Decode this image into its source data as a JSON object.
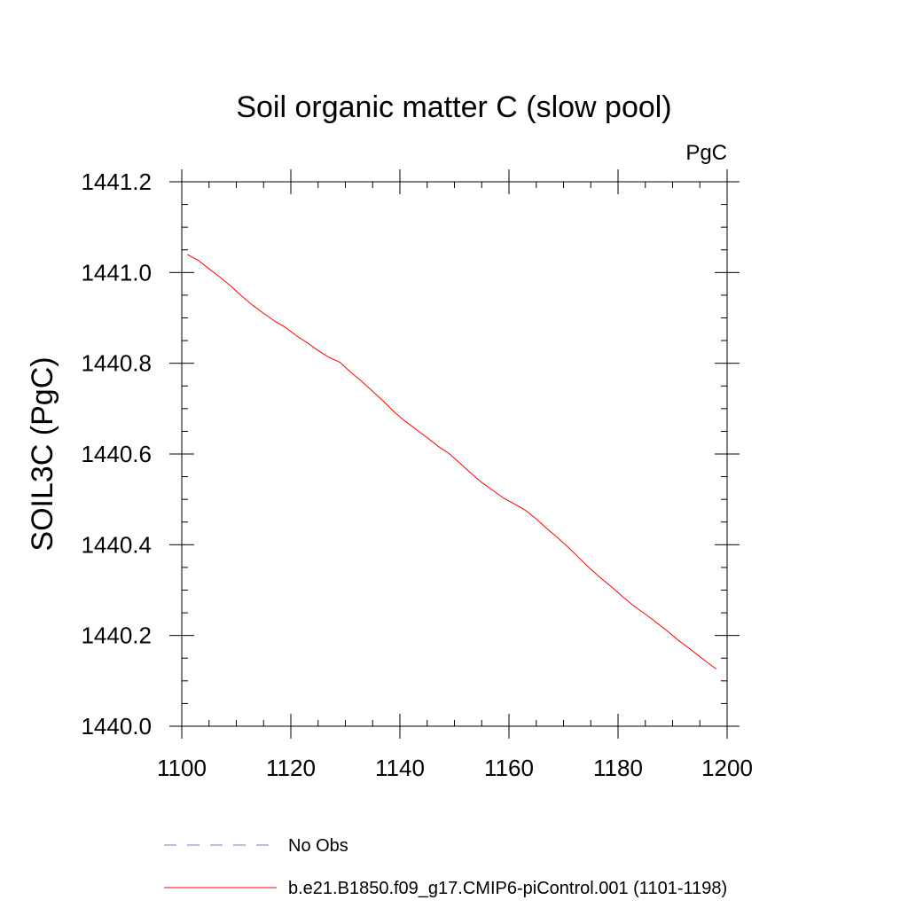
{
  "chart_data": {
    "type": "line",
    "title": "Soil organic matter C (slow pool)",
    "units": "PgC",
    "ylabel": "SOIL3C  (PgC)",
    "xlabel": "",
    "xlim": [
      1100,
      1200
    ],
    "ylim": [
      1440.0,
      1441.2
    ],
    "xticks": [
      "1100",
      "1120",
      "1140",
      "1160",
      "1180",
      "1200"
    ],
    "xtick_values": [
      1100,
      1120,
      1140,
      1160,
      1180,
      1200
    ],
    "yticks": [
      "1440.0",
      "1440.2",
      "1440.4",
      "1440.6",
      "1440.8",
      "1441.0",
      "1441.2"
    ],
    "ytick_values": [
      1440.0,
      1440.2,
      1440.4,
      1440.6,
      1440.8,
      1441.0,
      1441.2
    ],
    "grid": false,
    "legend_position": "bottom",
    "series": [
      {
        "name": "No Obs",
        "color": "#7b7bd6",
        "dash": true,
        "x": [],
        "y": []
      },
      {
        "name": "b.e21.B1850.f09_g17.CMIP6-piControl.001 (1101-1198)",
        "color": "#ff0000",
        "dash": false,
        "x": [
          1101,
          1103,
          1105,
          1107,
          1109,
          1111,
          1113,
          1115,
          1117,
          1119,
          1121,
          1123,
          1125,
          1127,
          1129,
          1131,
          1133,
          1135,
          1137,
          1139,
          1141,
          1143,
          1145,
          1147,
          1149,
          1151,
          1153,
          1155,
          1157,
          1159,
          1161,
          1163,
          1165,
          1167,
          1169,
          1171,
          1173,
          1175,
          1177,
          1179,
          1181,
          1183,
          1185,
          1187,
          1189,
          1191,
          1193,
          1195,
          1197,
          1198
        ],
        "y": [
          1441.04,
          1441.027,
          1441.008,
          1440.99,
          1440.97,
          1440.948,
          1440.928,
          1440.91,
          1440.893,
          1440.879,
          1440.861,
          1440.845,
          1440.828,
          1440.813,
          1440.802,
          1440.78,
          1440.76,
          1440.738,
          1440.716,
          1440.692,
          1440.672,
          1440.654,
          1440.636,
          1440.617,
          1440.601,
          1440.58,
          1440.558,
          1440.537,
          1440.52,
          1440.503,
          1440.49,
          1440.476,
          1440.457,
          1440.435,
          1440.415,
          1440.393,
          1440.369,
          1440.346,
          1440.325,
          1440.305,
          1440.284,
          1440.264,
          1440.247,
          1440.229,
          1440.21,
          1440.19,
          1440.172,
          1440.153,
          1440.135,
          1440.126
        ]
      }
    ]
  }
}
